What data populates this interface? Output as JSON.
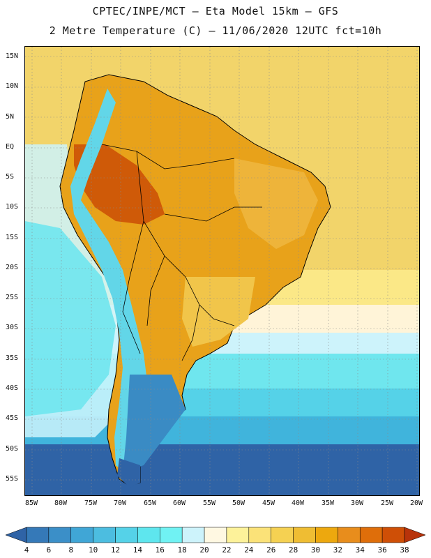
{
  "header": {
    "line1": "CPTEC/INPE/MCT –  Eta Model 15km – GFS",
    "line2": "2 Metre Temperature (C) – 11/06/2020 12UTC fct=10h"
  },
  "map": {
    "lat_labels": [
      "15N",
      "10N",
      "5N",
      "EQ",
      "5S",
      "10S",
      "15S",
      "20S",
      "25S",
      "30S",
      "35S",
      "40S",
      "45S",
      "50S",
      "55S"
    ],
    "lon_labels": [
      "85W",
      "80W",
      "75W",
      "70W",
      "65W",
      "60W",
      "55W",
      "50W",
      "45W",
      "40W",
      "35W",
      "30W",
      "25W",
      "20W"
    ],
    "lat_range": [
      -58,
      17
    ],
    "lon_range": [
      -87,
      -20
    ]
  },
  "legend": {
    "labels": [
      "4",
      "6",
      "8",
      "10",
      "12",
      "14",
      "16",
      "18",
      "20",
      "22",
      "24",
      "26",
      "28",
      "30",
      "32",
      "34",
      "36",
      "38"
    ],
    "colors": [
      "#2f63a6",
      "#3579b8",
      "#3b8fc8",
      "#40a6d6",
      "#4cbde0",
      "#55d2e8",
      "#5ee6ee",
      "#70f2f3",
      "#cdf3fb",
      "#fff8e2",
      "#fdf29a",
      "#fbe278",
      "#f5d152",
      "#efbd33",
      "#eda80e",
      "#e88d1c",
      "#df6e0a",
      "#cf4f06",
      "#b8330a"
    ]
  }
}
